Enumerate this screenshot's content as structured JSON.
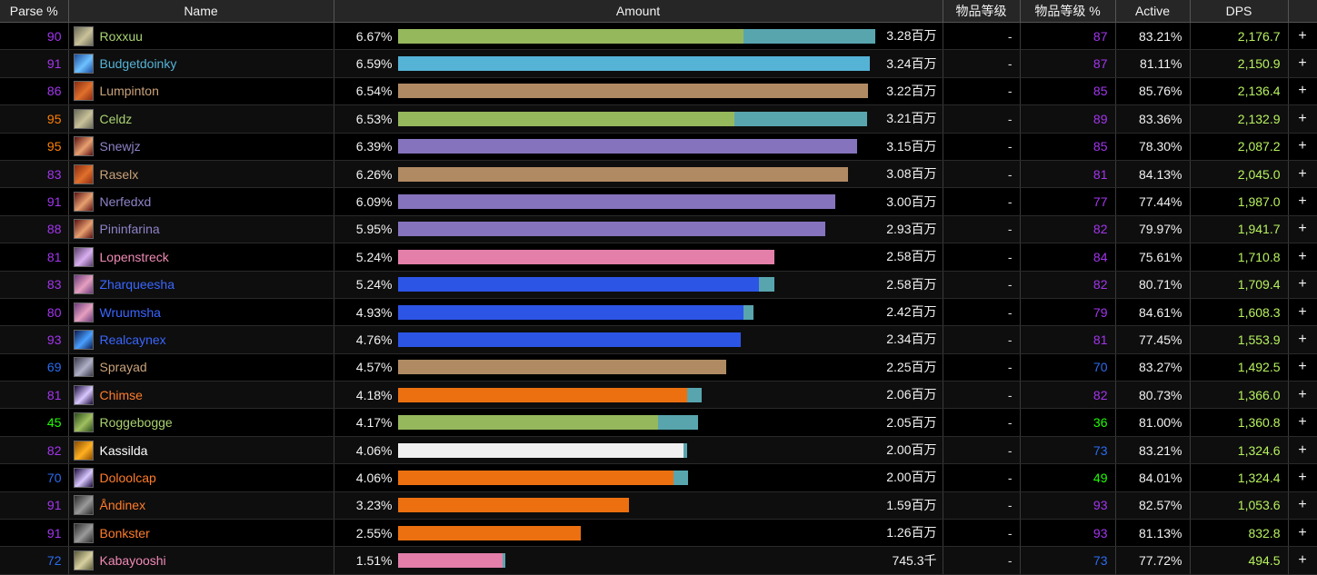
{
  "headers": {
    "parse": "Parse %",
    "name": "Name",
    "amount": "Amount",
    "ilvl": "物品等级",
    "ilvl_pct": "物品等级 %",
    "active": "Active",
    "dps": "DPS"
  },
  "colors": {
    "bar_pet": "#58a5ae",
    "class_hunter": "#96b85d",
    "class_shaman": "#55b3d6",
    "class_warrior": "#b08a63",
    "class_warlock": "#8573bd",
    "class_priest": "#f0f0f0",
    "class_rogue": "#fff569",
    "class_paladin": "#e37fa9",
    "class_mage": "#2c55e6",
    "class_druid": "#ec700f",
    "parse_purple": "#a335ee",
    "parse_blue": "#2a6cf0",
    "parse_orange": "#ff8000",
    "parse_green": "#1eff00",
    "dps_green": "#b7f15e"
  },
  "rows": [
    {
      "parse": "90",
      "parse_color": "#a335ee",
      "name": "Roxxuu",
      "name_color": "#a9d271",
      "icon": "hunter-class-icon",
      "icon_colors": [
        "#6b6b5a",
        "#c9c29a"
      ],
      "pct": "6.67%",
      "main_pct": 71.6,
      "pet_pct": 27.1,
      "bar_color": "#96b85d",
      "amount": "3.28百万",
      "ilvl": "-",
      "ilvl_pct": "87",
      "ilvl_pct_color": "#a335ee",
      "active": "83.21%",
      "dps": "2,176.7",
      "plus": "+"
    },
    {
      "parse": "91",
      "parse_color": "#a335ee",
      "name": "Budgetdoinky",
      "name_color": "#55b3d6",
      "icon": "shaman-class-icon",
      "icon_colors": [
        "#1c4c9c",
        "#6ec2ff"
      ],
      "pct": "6.59%",
      "main_pct": 97.7,
      "pet_pct": 0,
      "bar_color": "#55b3d6",
      "amount": "3.24百万",
      "ilvl": "-",
      "ilvl_pct": "87",
      "ilvl_pct_color": "#a335ee",
      "active": "81.11%",
      "dps": "2,150.9",
      "plus": "+"
    },
    {
      "parse": "86",
      "parse_color": "#a335ee",
      "name": "Lumpinton",
      "name_color": "#c9a27a",
      "icon": "warrior-class-icon",
      "icon_colors": [
        "#8a2a10",
        "#e0702c"
      ],
      "pct": "6.54%",
      "main_pct": 97.2,
      "pet_pct": 0,
      "bar_color": "#b08a63",
      "amount": "3.22百万",
      "ilvl": "-",
      "ilvl_pct": "85",
      "ilvl_pct_color": "#a335ee",
      "active": "85.76%",
      "dps": "2,136.4",
      "plus": "+"
    },
    {
      "parse": "95",
      "parse_color": "#ff8000",
      "name": "Celdz",
      "name_color": "#a9d271",
      "icon": "hunter-class-icon",
      "icon_colors": [
        "#6b6b5a",
        "#c9c29a"
      ],
      "pct": "6.53%",
      "main_pct": 69.6,
      "pet_pct": 27.4,
      "bar_color": "#96b85d",
      "amount": "3.21百万",
      "ilvl": "-",
      "ilvl_pct": "89",
      "ilvl_pct_color": "#a335ee",
      "active": "83.36%",
      "dps": "2,132.9",
      "plus": "+"
    },
    {
      "parse": "95",
      "parse_color": "#ff8000",
      "name": "Snewjz",
      "name_color": "#8f82c7",
      "icon": "warlock-class-icon",
      "icon_colors": [
        "#5a1010",
        "#e8a070"
      ],
      "pct": "6.39%",
      "main_pct": 95.1,
      "pet_pct": 0,
      "bar_color": "#8573bd",
      "amount": "3.15百万",
      "ilvl": "-",
      "ilvl_pct": "85",
      "ilvl_pct_color": "#a335ee",
      "active": "78.30%",
      "dps": "2,087.2",
      "plus": "+"
    },
    {
      "parse": "83",
      "parse_color": "#a335ee",
      "name": "Raselx",
      "name_color": "#c9a27a",
      "icon": "warrior-class-icon",
      "icon_colors": [
        "#8a2a10",
        "#e0702c"
      ],
      "pct": "6.26%",
      "main_pct": 93.2,
      "pet_pct": 0,
      "bar_color": "#b08a63",
      "amount": "3.08百万",
      "ilvl": "-",
      "ilvl_pct": "81",
      "ilvl_pct_color": "#a335ee",
      "active": "84.13%",
      "dps": "2,045.0",
      "plus": "+"
    },
    {
      "parse": "91",
      "parse_color": "#a335ee",
      "name": "Nerfedxd",
      "name_color": "#8f82c7",
      "icon": "warlock-class-icon",
      "icon_colors": [
        "#5a1010",
        "#e8a070"
      ],
      "pct": "6.09%",
      "main_pct": 90.6,
      "pet_pct": 0,
      "bar_color": "#8573bd",
      "amount": "3.00百万",
      "ilvl": "-",
      "ilvl_pct": "77",
      "ilvl_pct_color": "#a335ee",
      "active": "77.44%",
      "dps": "1,987.0",
      "plus": "+"
    },
    {
      "parse": "88",
      "parse_color": "#a335ee",
      "name": "Pininfarina",
      "name_color": "#8f82c7",
      "icon": "warlock-class-icon",
      "icon_colors": [
        "#5a1010",
        "#e8a070"
      ],
      "pct": "5.95%",
      "main_pct": 88.5,
      "pet_pct": 0,
      "bar_color": "#8573bd",
      "amount": "2.93百万",
      "ilvl": "-",
      "ilvl_pct": "82",
      "ilvl_pct_color": "#a335ee",
      "active": "79.97%",
      "dps": "1,941.7",
      "plus": "+"
    },
    {
      "parse": "81",
      "parse_color": "#a335ee",
      "name": "Lopenstreck",
      "name_color": "#f08ab5",
      "icon": "paladin-class-icon",
      "icon_colors": [
        "#5a3d6b",
        "#d9b0f0"
      ],
      "pct": "5.24%",
      "main_pct": 78.0,
      "pet_pct": 0,
      "bar_color": "#e37fa9",
      "amount": "2.58百万",
      "ilvl": "-",
      "ilvl_pct": "84",
      "ilvl_pct_color": "#a335ee",
      "active": "75.61%",
      "dps": "1,710.8",
      "plus": "+"
    },
    {
      "parse": "83",
      "parse_color": "#a335ee",
      "name": "Zharqueesha",
      "name_color": "#3a66ff",
      "icon": "mage-class-icon",
      "icon_colors": [
        "#6a3a7a",
        "#e6a0c0"
      ],
      "pct": "5.24%",
      "main_pct": 74.8,
      "pet_pct": 3.2,
      "bar_color": "#2c55e6",
      "amount": "2.58百万",
      "ilvl": "-",
      "ilvl_pct": "82",
      "ilvl_pct_color": "#a335ee",
      "active": "80.71%",
      "dps": "1,709.4",
      "plus": "+"
    },
    {
      "parse": "80",
      "parse_color": "#a335ee",
      "name": "Wruumsha",
      "name_color": "#3a66ff",
      "icon": "mage-class-icon",
      "icon_colors": [
        "#6a3a7a",
        "#e6a0c0"
      ],
      "pct": "4.93%",
      "main_pct": 71.6,
      "pet_pct": 1.9,
      "bar_color": "#2c55e6",
      "amount": "2.42百万",
      "ilvl": "-",
      "ilvl_pct": "79",
      "ilvl_pct_color": "#a335ee",
      "active": "84.61%",
      "dps": "1,608.3",
      "plus": "+"
    },
    {
      "parse": "93",
      "parse_color": "#a335ee",
      "name": "Realcaynex",
      "name_color": "#3a66ff",
      "icon": "mage-lightning-icon",
      "icon_colors": [
        "#0a1a50",
        "#4aa0ff"
      ],
      "pct": "4.76%",
      "main_pct": 70.9,
      "pet_pct": 0,
      "bar_color": "#2c55e6",
      "amount": "2.34百万",
      "ilvl": "-",
      "ilvl_pct": "81",
      "ilvl_pct_color": "#a335ee",
      "active": "77.45%",
      "dps": "1,553.9",
      "plus": "+"
    },
    {
      "parse": "69",
      "parse_color": "#2a6cf0",
      "name": "Sprayad",
      "name_color": "#c9a27a",
      "icon": "warrior-class-icon",
      "icon_colors": [
        "#3a3a4a",
        "#b0b0c8"
      ],
      "pct": "4.57%",
      "main_pct": 68.0,
      "pet_pct": 0,
      "bar_color": "#b08a63",
      "amount": "2.25百万",
      "ilvl": "-",
      "ilvl_pct": "70",
      "ilvl_pct_color": "#2a6cf0",
      "active": "83.27%",
      "dps": "1,492.5",
      "plus": "+"
    },
    {
      "parse": "81",
      "parse_color": "#a335ee",
      "name": "Chimse",
      "name_color": "#ff7c2a",
      "icon": "druid-class-icon",
      "icon_colors": [
        "#1a0a3a",
        "#d8c8ff"
      ],
      "pct": "4.18%",
      "main_pct": 59.8,
      "pet_pct": 3.0,
      "bar_color": "#ec700f",
      "amount": "2.06百万",
      "ilvl": "-",
      "ilvl_pct": "82",
      "ilvl_pct_color": "#a335ee",
      "active": "80.73%",
      "dps": "1,366.0",
      "plus": "+"
    },
    {
      "parse": "45",
      "parse_color": "#1eff00",
      "name": "Roggebogge",
      "name_color": "#a9d271",
      "icon": "hunter-class-icon",
      "icon_colors": [
        "#2a4a1a",
        "#a0c060"
      ],
      "pct": "4.17%",
      "main_pct": 53.8,
      "pet_pct": 8.3,
      "bar_color": "#96b85d",
      "amount": "2.05百万",
      "ilvl": "-",
      "ilvl_pct": "36",
      "ilvl_pct_color": "#1eff00",
      "active": "81.00%",
      "dps": "1,360.8",
      "plus": "+"
    },
    {
      "parse": "82",
      "parse_color": "#a335ee",
      "name": "Kassilda",
      "name_color": "#ffffff",
      "icon": "priest-class-icon",
      "icon_colors": [
        "#8a4a00",
        "#ffb020"
      ],
      "pct": "4.06%",
      "main_pct": 59.2,
      "pet_pct": 0.6,
      "bar_color": "#f0f0f0",
      "amount": "2.00百万",
      "ilvl": "-",
      "ilvl_pct": "73",
      "ilvl_pct_color": "#2a6cf0",
      "active": "83.21%",
      "dps": "1,324.6",
      "plus": "+"
    },
    {
      "parse": "70",
      "parse_color": "#2a6cf0",
      "name": "Doloolcap",
      "name_color": "#ff7c2a",
      "icon": "druid-class-icon",
      "icon_colors": [
        "#1a0a3a",
        "#d8c8ff"
      ],
      "pct": "4.06%",
      "main_pct": 57.1,
      "pet_pct": 3.0,
      "bar_color": "#ec700f",
      "amount": "2.00百万",
      "ilvl": "-",
      "ilvl_pct": "49",
      "ilvl_pct_color": "#1eff00",
      "active": "84.01%",
      "dps": "1,324.4",
      "plus": "+"
    },
    {
      "parse": "91",
      "parse_color": "#a335ee",
      "name": "Åndinex",
      "name_color": "#ff7c2a",
      "icon": "druid-bear-icon",
      "icon_colors": [
        "#2a2a2a",
        "#9a9a9a"
      ],
      "pct": "3.23%",
      "main_pct": 47.9,
      "pet_pct": 0,
      "bar_color": "#ec700f",
      "amount": "1.59百万",
      "ilvl": "-",
      "ilvl_pct": "93",
      "ilvl_pct_color": "#a335ee",
      "active": "82.57%",
      "dps": "1,053.6",
      "plus": "+"
    },
    {
      "parse": "91",
      "parse_color": "#a335ee",
      "name": "Bonkster",
      "name_color": "#ff7c2a",
      "icon": "druid-bear-icon",
      "icon_colors": [
        "#2a2a2a",
        "#9a9a9a"
      ],
      "pct": "2.55%",
      "main_pct": 37.8,
      "pet_pct": 0,
      "bar_color": "#ec700f",
      "amount": "1.26百万",
      "ilvl": "-",
      "ilvl_pct": "93",
      "ilvl_pct_color": "#a335ee",
      "active": "81.13%",
      "dps": "832.8",
      "plus": "+"
    },
    {
      "parse": "72",
      "parse_color": "#2a6cf0",
      "name": "Kabayooshi",
      "name_color": "#f08ab5",
      "icon": "paladin-class-icon",
      "icon_colors": [
        "#5a5a3a",
        "#d8d0a0"
      ],
      "pct": "1.51%",
      "main_pct": 21.8,
      "pet_pct": 0.4,
      "bar_color": "#e37fa9",
      "amount": "745.3千",
      "ilvl": "-",
      "ilvl_pct": "73",
      "ilvl_pct_color": "#2a6cf0",
      "active": "77.72%",
      "dps": "494.5",
      "plus": "+"
    }
  ]
}
